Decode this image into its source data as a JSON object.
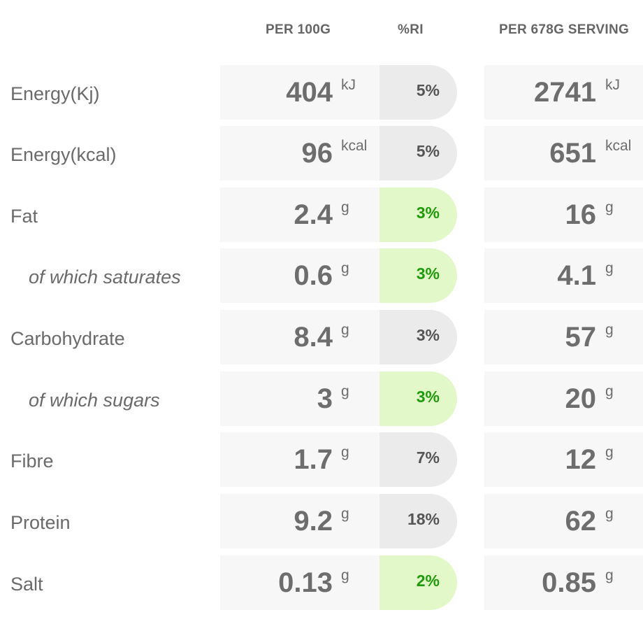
{
  "header": {
    "per100": "PER 100G",
    "ri": "%RI",
    "serving": "PER 678G SERVING"
  },
  "colors": {
    "cell_background": "#f7f7f7",
    "ri_neutral": "#ebebeb",
    "ri_good": "#e3f8c8",
    "ri_good_text": "#1f9a0a",
    "text": "#6d6d6d"
  },
  "rows": [
    {
      "label": "Energy(Kj)",
      "sub": false,
      "per100": "404",
      "per100_unit": "kJ",
      "ri": "5%",
      "ri_good": false,
      "serving": "2741",
      "serving_unit": "kJ"
    },
    {
      "label": "Energy(kcal)",
      "sub": false,
      "per100": "96",
      "per100_unit": "kcal",
      "ri": "5%",
      "ri_good": false,
      "serving": "651",
      "serving_unit": "kcal"
    },
    {
      "label": "Fat",
      "sub": false,
      "per100": "2.4",
      "per100_unit": "g",
      "ri": "3%",
      "ri_good": true,
      "serving": "16",
      "serving_unit": "g"
    },
    {
      "label": "of which saturates",
      "sub": true,
      "per100": "0.6",
      "per100_unit": "g",
      "ri": "3%",
      "ri_good": true,
      "serving": "4.1",
      "serving_unit": "g"
    },
    {
      "label": "Carbohydrate",
      "sub": false,
      "per100": "8.4",
      "per100_unit": "g",
      "ri": "3%",
      "ri_good": false,
      "serving": "57",
      "serving_unit": "g"
    },
    {
      "label": "of which sugars",
      "sub": true,
      "per100": "3",
      "per100_unit": "g",
      "ri": "3%",
      "ri_good": true,
      "serving": "20",
      "serving_unit": "g"
    },
    {
      "label": "Fibre",
      "sub": false,
      "per100": "1.7",
      "per100_unit": "g",
      "ri": "7%",
      "ri_good": false,
      "serving": "12",
      "serving_unit": "g"
    },
    {
      "label": "Protein",
      "sub": false,
      "per100": "9.2",
      "per100_unit": "g",
      "ri": "18%",
      "ri_good": false,
      "serving": "62",
      "serving_unit": "g"
    },
    {
      "label": "Salt",
      "sub": false,
      "per100": "0.13",
      "per100_unit": "g",
      "ri": "2%",
      "ri_good": true,
      "serving": "0.85",
      "serving_unit": "g"
    }
  ]
}
